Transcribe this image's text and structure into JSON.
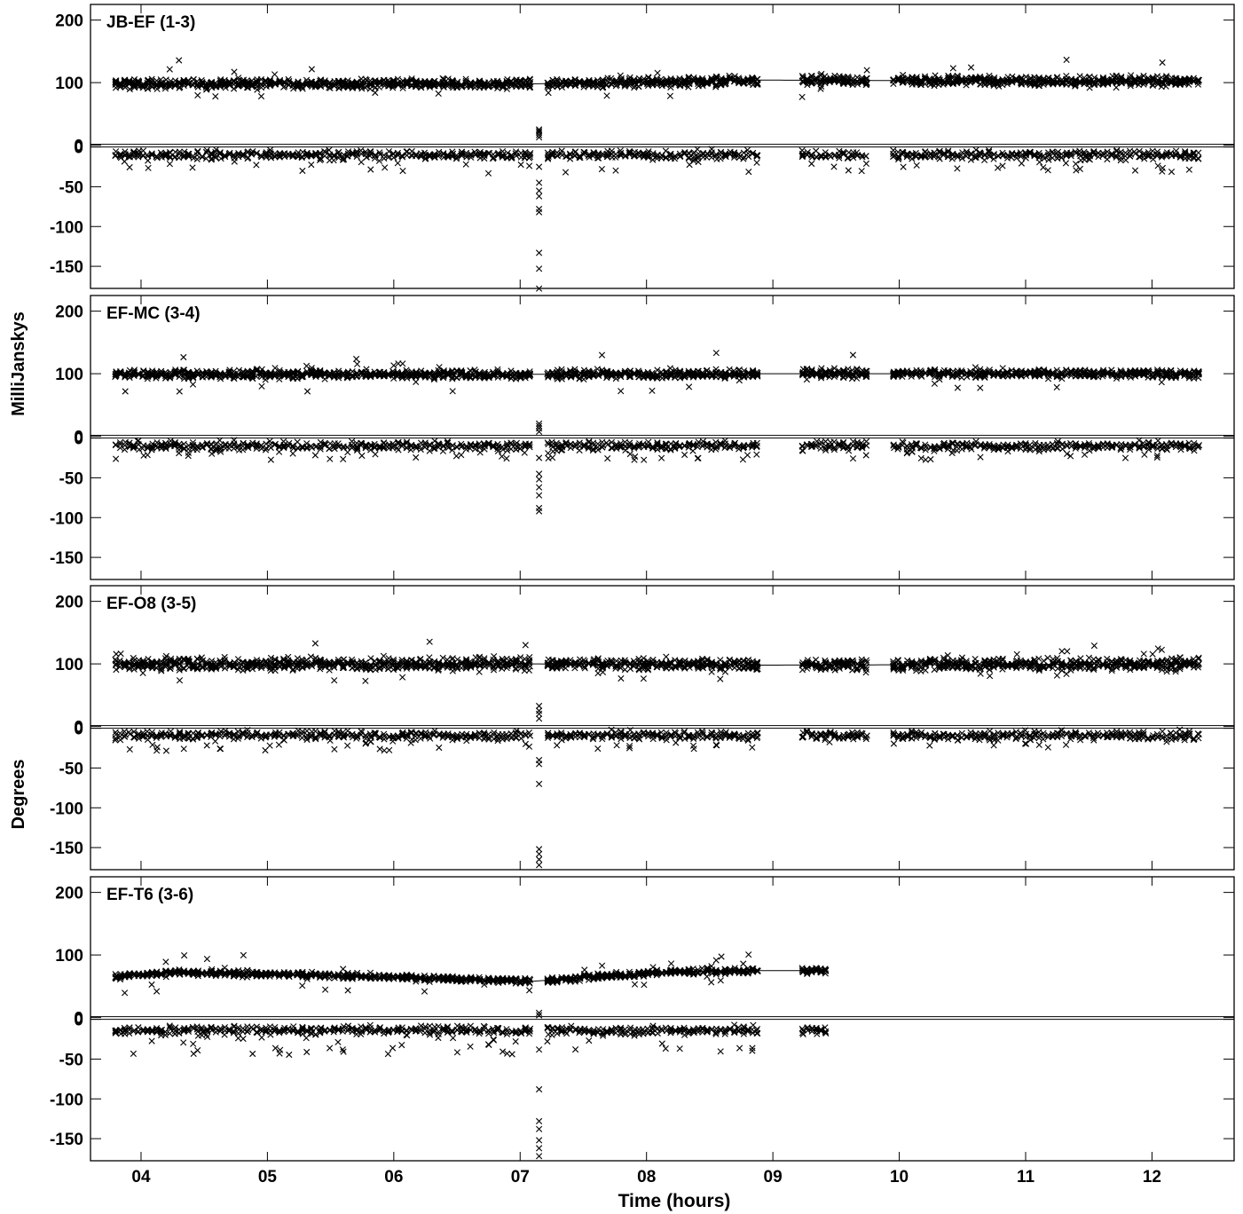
{
  "chart_data": {
    "type": "scatter",
    "xlabel": "Time (hours)",
    "ylabel_upper": "MilliJanskys",
    "ylabel_lower": "Degrees",
    "x_ticks": [
      "04",
      "05",
      "06",
      "07",
      "08",
      "09",
      "10",
      "11",
      "12"
    ],
    "xlim": [
      3.6,
      12.65
    ],
    "amp_ticks": [
      "200",
      "100",
      "0"
    ],
    "amp_ylim": [
      -2,
      225
    ],
    "phase_ticks": [
      "0",
      "-50",
      "-100",
      "-150"
    ],
    "phase_ylim": [
      -180,
      4
    ],
    "marker": "x",
    "color": "#000000",
    "panels": [
      {
        "label": "JB-EF (1-3)",
        "amp": {
          "center": 100,
          "spread": 11,
          "tmax": 12.38,
          "gaps": [
            [
              8.9,
              9.2
            ],
            [
              9.75,
              9.95
            ]
          ],
          "model": [
            [
              3.8,
              98
            ],
            [
              7.1,
              98
            ],
            [
              8.9,
              104
            ],
            [
              12.38,
              102
            ]
          ]
        },
        "phase": {
          "center": -10,
          "dip": -20,
          "tmax": 12.38,
          "outliers": [
            -25,
            -45,
            -55,
            -62,
            -78,
            -82,
            -133,
            -153,
            -178,
            12,
            15,
            18,
            20,
            22
          ]
        }
      },
      {
        "label": "EF-MC (3-4)",
        "amp": {
          "center": 100,
          "spread": 10,
          "tmax": 12.38,
          "gaps": [
            [
              8.9,
              9.2
            ],
            [
              9.75,
              9.95
            ]
          ],
          "model": [
            [
              3.8,
              99
            ],
            [
              7.1,
              99
            ],
            [
              8.9,
              100
            ],
            [
              12.38,
              100
            ]
          ]
        },
        "phase": {
          "center": -10,
          "dip": -16,
          "tmax": 12.38,
          "outliers": [
            -25,
            -45,
            -52,
            -62,
            -72,
            -88,
            -92,
            8,
            12,
            15,
            18
          ]
        }
      },
      {
        "label": "EF-O8 (3-5)",
        "amp": {
          "center": 100,
          "spread": 14,
          "tmax": 12.38,
          "gaps": [
            [
              8.9,
              9.2
            ],
            [
              9.75,
              9.95
            ]
          ],
          "model": [
            [
              3.8,
              100
            ],
            [
              7.1,
              100
            ],
            [
              8.9,
              98
            ],
            [
              12.38,
              100
            ]
          ]
        },
        "phase": {
          "center": -9,
          "dip": -18,
          "tmax": 12.38,
          "outliers": [
            -40,
            -45,
            -70,
            -152,
            -158,
            -165,
            -172,
            12,
            18,
            22,
            28
          ]
        }
      },
      {
        "label": "EF-T6 (3-6)",
        "amp": {
          "center": 68,
          "spread": 7,
          "tmax": 9.45,
          "gaps": [
            [
              8.9,
              9.2
            ]
          ],
          "model": [
            [
              3.8,
              66
            ],
            [
              4.3,
              72
            ],
            [
              5.5,
              67
            ],
            [
              7.1,
              58
            ],
            [
              8.2,
              73
            ],
            [
              8.9,
              75
            ],
            [
              9.45,
              75
            ]
          ]
        },
        "phase": {
          "center": -14,
          "dip": -30,
          "tmax": 9.45,
          "outliers": [
            -38,
            -88,
            -128,
            -138,
            -152,
            -162,
            -172,
            5,
            8
          ]
        }
      }
    ]
  }
}
